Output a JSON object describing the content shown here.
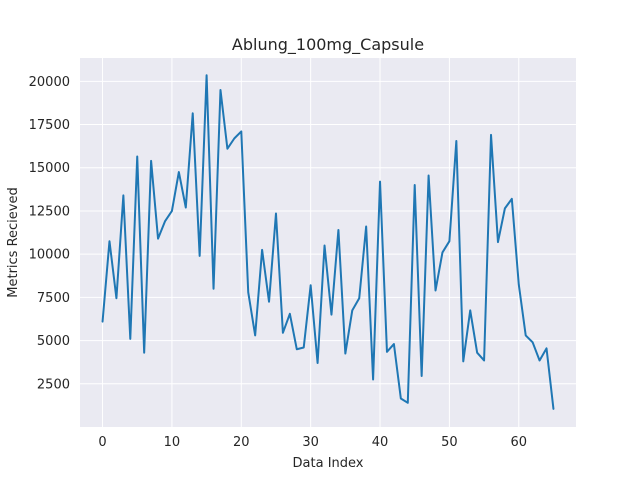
{
  "chart_data": {
    "type": "line",
    "title": "Ablung_100mg_Capsule",
    "xlabel": "Data Index",
    "ylabel": "Metrics Recieved",
    "xlim": [
      -3.25,
      68.25
    ],
    "ylim": [
      0,
      21350
    ],
    "xticks": [
      0,
      10,
      20,
      30,
      40,
      50,
      60
    ],
    "yticks": [
      2500,
      5000,
      7500,
      10000,
      12500,
      15000,
      17500,
      20000
    ],
    "ytick_labels": [
      "2500",
      "5000",
      "7500",
      "10000",
      "12500",
      "15000",
      "17500",
      "20000"
    ],
    "grid": true,
    "background_color": "#eaeaf2",
    "grid_color": "#ffffff",
    "line_color": "#1f77b4",
    "series": [
      {
        "x": [
          0,
          1,
          2,
          3,
          4,
          5,
          6,
          7,
          8,
          9,
          10,
          11,
          12,
          13,
          14,
          15,
          16,
          17,
          18,
          19,
          20,
          21,
          22,
          23,
          24,
          25,
          26,
          27,
          28,
          29,
          30,
          31,
          32,
          33,
          34,
          35,
          36,
          37,
          38,
          39,
          40,
          41,
          42,
          43,
          44,
          45,
          46,
          47,
          48,
          49,
          50,
          51,
          52,
          53,
          54,
          55,
          56,
          57,
          58,
          59,
          60,
          61,
          62,
          63,
          64,
          65
        ],
        "values": [
          6100,
          10750,
          7450,
          13400,
          5100,
          15650,
          4300,
          15400,
          10900,
          11900,
          12500,
          14750,
          12700,
          18150,
          9900,
          20350,
          8000,
          19500,
          16100,
          16700,
          17100,
          7800,
          5300,
          10250,
          7250,
          12350,
          5450,
          6550,
          4500,
          4600,
          8200,
          3700,
          10500,
          6500,
          11400,
          4250,
          6750,
          7450,
          11600,
          2750,
          14200,
          4350,
          4800,
          1650,
          1400,
          14000,
          2950,
          14550,
          7900,
          10100,
          10750,
          16550,
          3800,
          6750,
          4300,
          3850,
          16900,
          10700,
          12650,
          13200,
          8250,
          5300,
          4900,
          3850,
          4550,
          1050
        ]
      }
    ]
  }
}
